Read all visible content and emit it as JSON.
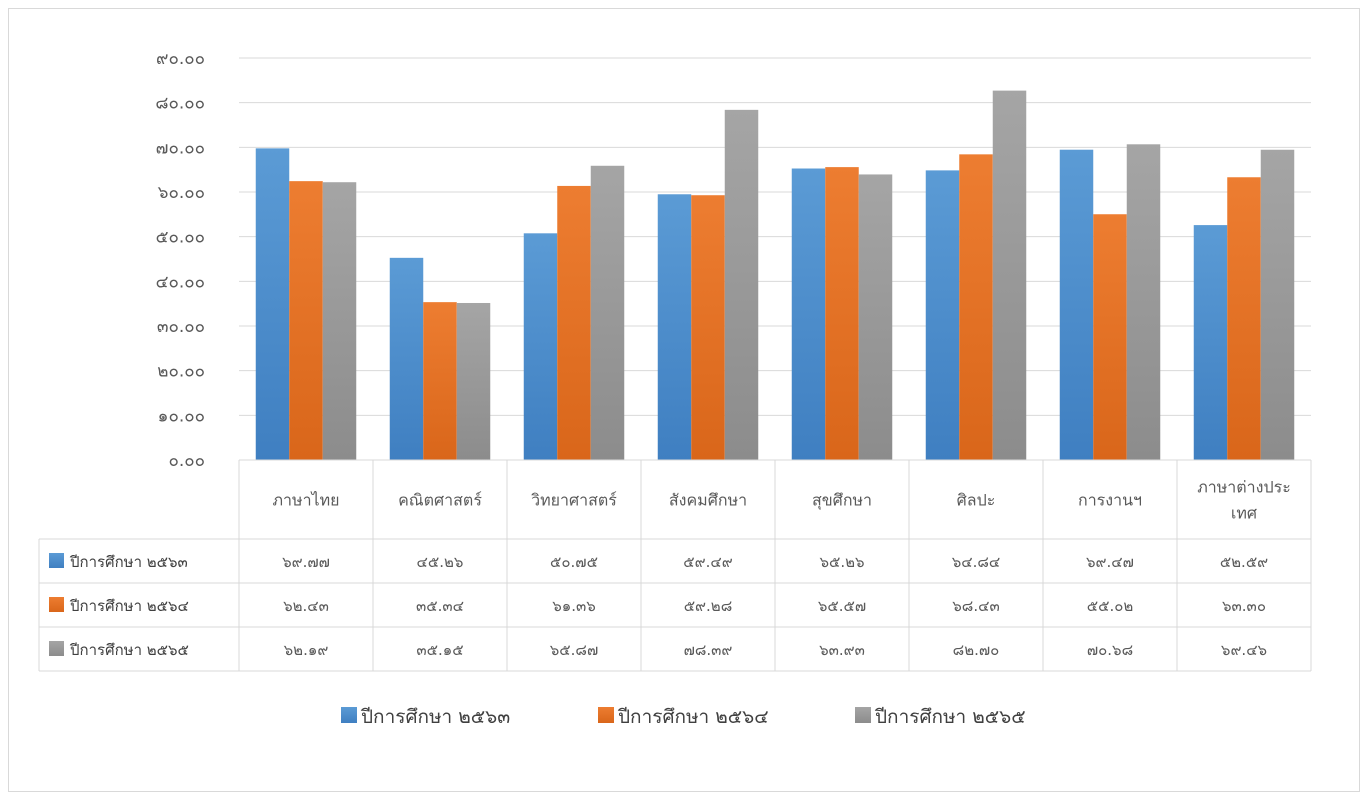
{
  "chart_data": {
    "type": "bar",
    "categories": [
      "ภาษาไทย",
      "คณิตศาสตร์",
      "วิทยาศาสตร์",
      "สังคมศึกษา",
      "สุขศึกษา",
      "ศิลปะ",
      "การงานฯ",
      "ภาษาต่างประเทศ"
    ],
    "category_lines": [
      [
        "ภาษาไทย"
      ],
      [
        "คณิตศาสตร์"
      ],
      [
        "วิทยาศาสตร์"
      ],
      [
        "สังคมศึกษา"
      ],
      [
        "สุขศึกษา"
      ],
      [
        "ศิลปะ"
      ],
      [
        "การงานฯ"
      ],
      [
        "ภาษาต่างประ",
        "เทศ"
      ]
    ],
    "series": [
      {
        "name": "ปีการศึกษา ๒๕๖๓",
        "color": "#5B9BD5",
        "values": [
          69.77,
          45.26,
          50.75,
          59.49,
          65.26,
          64.84,
          69.47,
          52.59
        ],
        "labels": [
          "๖๙.๗๗",
          "๔๕.๒๖",
          "๕๐.๗๕",
          "๕๙.๔๙",
          "๖๕.๒๖",
          "๖๔.๘๔",
          "๖๙.๔๗",
          "๕๒.๕๙"
        ]
      },
      {
        "name": "ปีการศึกษา ๒๕๖๔",
        "color": "#ED7D31",
        "values": [
          62.43,
          35.34,
          61.36,
          59.28,
          65.57,
          68.43,
          55.02,
          63.3
        ],
        "labels": [
          "๖๒.๔๓",
          "๓๕.๓๔",
          "๖๑.๓๖",
          "๕๙.๒๘",
          "๖๕.๕๗",
          "๖๘.๔๓",
          "๕๕.๐๒",
          "๖๓.๓๐"
        ]
      },
      {
        "name": "ปีการศึกษา ๒๕๖๕",
        "color": "#A5A5A5",
        "values": [
          62.19,
          35.15,
          65.87,
          78.39,
          63.93,
          82.7,
          70.68,
          69.46
        ],
        "labels": [
          "๖๒.๑๙",
          "๓๕.๑๕",
          "๖๕.๘๗",
          "๗๘.๓๙",
          "๖๓.๙๓",
          "๘๒.๗๐",
          "๗๐.๖๘",
          "๖๙.๔๖"
        ]
      }
    ],
    "ylim": [
      0,
      90
    ],
    "yticks": [
      0,
      10,
      20,
      30,
      40,
      50,
      60,
      70,
      80,
      90
    ],
    "ytick_labels": [
      "๐.๐๐",
      "๑๐.๐๐",
      "๒๐.๐๐",
      "๓๐.๐๐",
      "๔๐.๐๐",
      "๕๐.๐๐",
      "๖๐.๐๐",
      "๗๐.๐๐",
      "๘๐.๐๐",
      "๙๐.๐๐"
    ],
    "grid": true,
    "data_table": true,
    "legend_position": "bottom"
  }
}
